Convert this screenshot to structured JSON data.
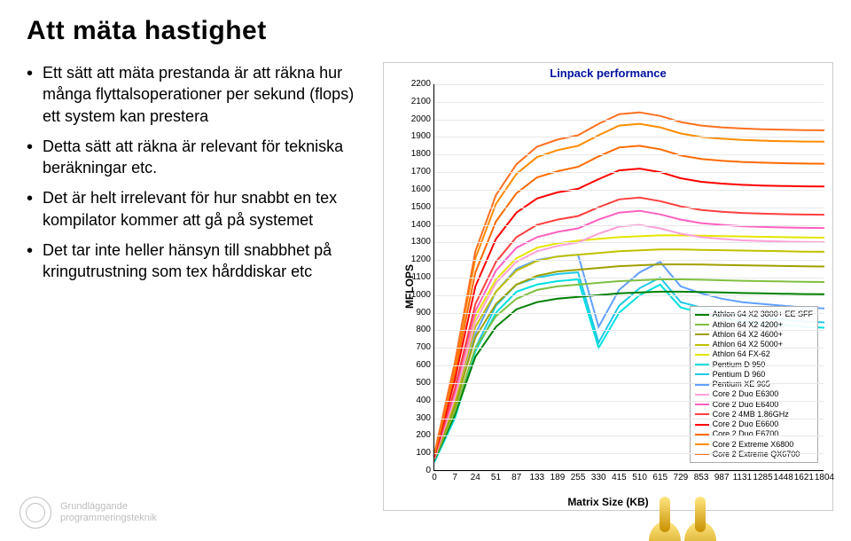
{
  "title": "Att mäta hastighet",
  "bullets": [
    "Ett sätt att mäta prestanda är att räkna hur många flyttalsoperationer per sekund (flops) ett system kan prestera",
    "Detta sätt att räkna är relevant för tekniska beräkningar etc.",
    "Det är helt irrelevant för hur snabbt en tex kompilator kommer att gå på systemet",
    "Det tar inte heller hänsyn till snabbhet på kringutrustning som tex hårddiskar etc"
  ],
  "footer": {
    "line1": "Grundläggande",
    "line2": "programmeringsteknik"
  },
  "chart": {
    "type": "line",
    "title": "Linpack performance",
    "xlabel": "Matrix Size (KB)",
    "ylabel": "MFLOPS",
    "background_color": "#ffffff",
    "grid_color": "#e8e8e8",
    "ylim": [
      0,
      2200
    ],
    "ytick_step": 100,
    "xticks_labels": [
      "0",
      "7",
      "24",
      "51",
      "87",
      "133",
      "189",
      "255",
      "330",
      "415",
      "510",
      "615",
      "729",
      "853",
      "987",
      "1131",
      "1285",
      "1448",
      "1621",
      "1804"
    ],
    "xticks_pos": [
      0,
      1,
      2,
      3,
      4,
      5,
      6,
      7,
      8,
      9,
      10,
      11,
      12,
      13,
      14,
      15,
      16,
      17,
      18,
      19
    ],
    "legend": [
      {
        "label": "Athlon 64 X2 3800+ EE SFF",
        "color": "#008000"
      },
      {
        "label": "Athlon 64 X2 4200+",
        "color": "#7fbf3f"
      },
      {
        "label": "Athlon 64 X2 4600+",
        "color": "#a0a000"
      },
      {
        "label": "Athlon 64 X2 5000+",
        "color": "#c0c000"
      },
      {
        "label": "Athlon 64 FX-62",
        "color": "#e6e600"
      },
      {
        "label": "Pentium D 950",
        "color": "#00e0e0"
      },
      {
        "label": "Pentium D 960",
        "color": "#20c8e8"
      },
      {
        "label": "Pentium XE 965",
        "color": "#60a0ff"
      },
      {
        "label": "Core 2 Duo E6300",
        "color": "#ff9fd8"
      },
      {
        "label": "Core 2 Duo E6400",
        "color": "#ff60c0"
      },
      {
        "label": "Core 2 4MB 1.86GHz",
        "color": "#ff4040"
      },
      {
        "label": "Core 2 Duo E6600",
        "color": "#ff0000"
      },
      {
        "label": "Core 2 Duo E6700",
        "color": "#ff6a00"
      },
      {
        "label": "Core 2 Extreme X6800",
        "color": "#ff8c00"
      },
      {
        "label": "Core 2 Extreme QX6700",
        "color": "#ff7020"
      }
    ],
    "series": [
      {
        "name": "Pentium D 950",
        "color": "#00e0e0",
        "y": [
          50,
          300,
          680,
          900,
          1020,
          1060,
          1080,
          1090,
          700,
          900,
          1000,
          1060,
          930,
          900,
          870,
          850,
          840,
          830,
          820,
          815
        ]
      },
      {
        "name": "Pentium D 960",
        "color": "#20c8e8",
        "y": [
          55,
          320,
          700,
          940,
          1060,
          1100,
          1120,
          1130,
          730,
          940,
          1040,
          1100,
          960,
          930,
          900,
          880,
          870,
          860,
          850,
          845
        ]
      },
      {
        "name": "Pentium XE 965",
        "color": "#60a0ff",
        "y": [
          60,
          360,
          780,
          1020,
          1150,
          1200,
          1220,
          1230,
          820,
          1030,
          1130,
          1190,
          1050,
          1010,
          980,
          960,
          950,
          940,
          930,
          925
        ]
      },
      {
        "name": "Athlon 64 X2 3800+ EE SFF",
        "color": "#008000",
        "y": [
          60,
          320,
          650,
          820,
          920,
          960,
          980,
          990,
          1000,
          1010,
          1015,
          1020,
          1020,
          1018,
          1015,
          1012,
          1010,
          1008,
          1006,
          1005
        ]
      },
      {
        "name": "Athlon 64 X2 4200+",
        "color": "#7fbf3f",
        "y": [
          65,
          340,
          700,
          880,
          980,
          1030,
          1050,
          1060,
          1070,
          1080,
          1085,
          1090,
          1090,
          1088,
          1085,
          1082,
          1080,
          1078,
          1076,
          1075
        ]
      },
      {
        "name": "Athlon 64 X2 4600+",
        "color": "#a0a000",
        "y": [
          70,
          370,
          760,
          950,
          1060,
          1110,
          1135,
          1145,
          1155,
          1165,
          1170,
          1175,
          1175,
          1174,
          1172,
          1170,
          1168,
          1166,
          1164,
          1163
        ]
      },
      {
        "name": "Athlon 64 X2 5000+",
        "color": "#c0c000",
        "y": [
          75,
          400,
          820,
          1020,
          1140,
          1195,
          1220,
          1230,
          1240,
          1250,
          1255,
          1260,
          1260,
          1258,
          1256,
          1254,
          1252,
          1250,
          1248,
          1247
        ]
      },
      {
        "name": "Athlon 64 FX-62",
        "color": "#e6e600",
        "y": [
          80,
          430,
          880,
          1090,
          1210,
          1270,
          1295,
          1310,
          1320,
          1330,
          1335,
          1340,
          1340,
          1338,
          1336,
          1334,
          1332,
          1330,
          1328,
          1327
        ]
      },
      {
        "name": "Core 2 Duo E6300",
        "color": "#ff9fd8",
        "y": [
          70,
          420,
          850,
          1070,
          1190,
          1250,
          1280,
          1300,
          1350,
          1390,
          1400,
          1380,
          1350,
          1330,
          1320,
          1312,
          1308,
          1305,
          1303,
          1302
        ]
      },
      {
        "name": "Core 2 Duo E6400",
        "color": "#ff60c0",
        "y": [
          75,
          450,
          910,
          1140,
          1270,
          1330,
          1360,
          1380,
          1430,
          1470,
          1480,
          1460,
          1430,
          1410,
          1400,
          1392,
          1388,
          1385,
          1383,
          1382
        ]
      },
      {
        "name": "Core 2 4MB 1.86GHz",
        "color": "#ff4040",
        "y": [
          78,
          470,
          950,
          1190,
          1330,
          1400,
          1430,
          1450,
          1500,
          1545,
          1555,
          1535,
          1505,
          1485,
          1475,
          1468,
          1464,
          1461,
          1459,
          1458
        ]
      },
      {
        "name": "Core 2 Duo E6600",
        "color": "#ff0000",
        "y": [
          85,
          520,
          1050,
          1320,
          1470,
          1550,
          1585,
          1605,
          1660,
          1710,
          1720,
          1700,
          1665,
          1645,
          1635,
          1628,
          1624,
          1621,
          1619,
          1618
        ]
      },
      {
        "name": "Core 2 Duo E6700",
        "color": "#ff6a00",
        "y": [
          90,
          560,
          1130,
          1420,
          1580,
          1670,
          1705,
          1730,
          1790,
          1840,
          1850,
          1830,
          1795,
          1775,
          1765,
          1758,
          1754,
          1751,
          1749,
          1748
        ]
      },
      {
        "name": "Core 2 Extreme X6800",
        "color": "#ff8c00",
        "y": [
          95,
          600,
          1210,
          1520,
          1690,
          1785,
          1825,
          1850,
          1910,
          1965,
          1975,
          1955,
          1920,
          1900,
          1890,
          1883,
          1879,
          1876,
          1874,
          1873
        ]
      },
      {
        "name": "Core 2 Extreme QX6700",
        "color": "#ff7020",
        "y": [
          98,
          620,
          1250,
          1570,
          1745,
          1845,
          1885,
          1910,
          1975,
          2030,
          2040,
          2020,
          1985,
          1965,
          1955,
          1948,
          1944,
          1941,
          1939,
          1938
        ]
      }
    ]
  }
}
